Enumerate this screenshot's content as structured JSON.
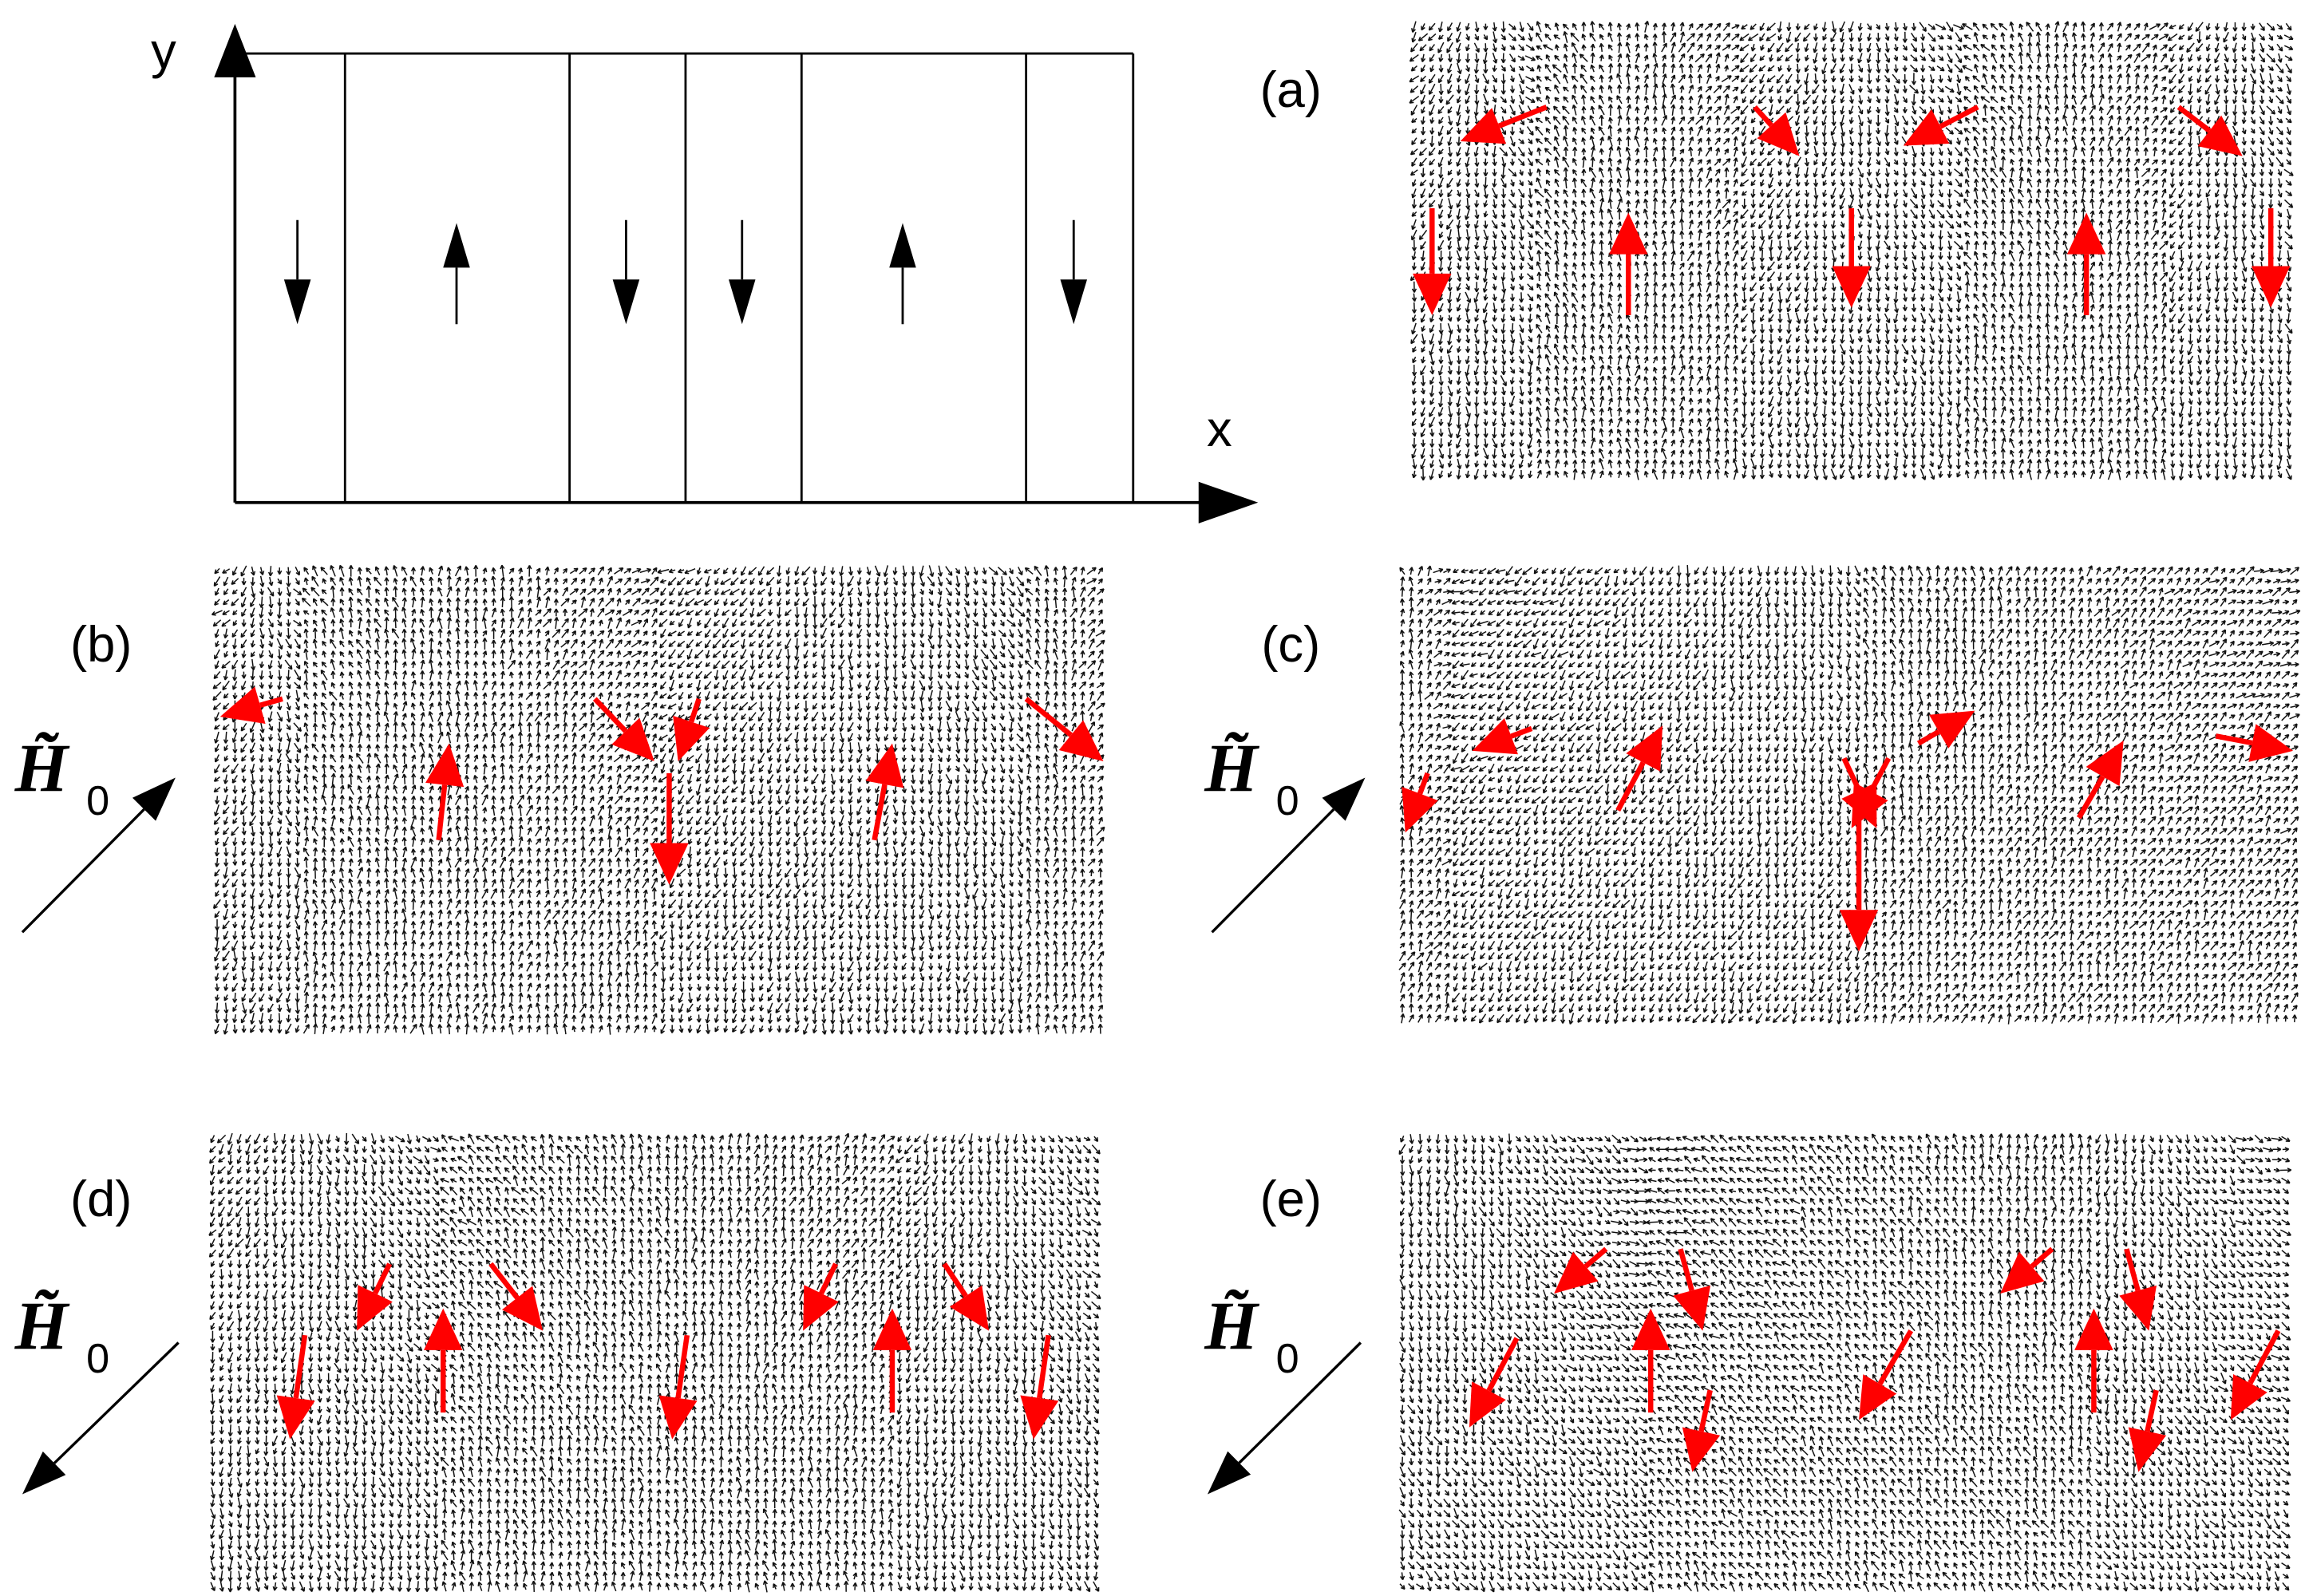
{
  "schematic": {
    "y_axis_label": "y",
    "x_axis_label": "x"
  },
  "panels": [
    {
      "label": "(a)"
    },
    {
      "label": "(b)",
      "field": {
        "symbol": "H̃",
        "subscript": "0"
      }
    },
    {
      "label": "(c)",
      "field": {
        "symbol": "H̃",
        "subscript": "0"
      }
    },
    {
      "label": "(d)",
      "field": {
        "symbol": "H̃",
        "subscript": "0"
      }
    },
    {
      "label": "(e)",
      "field": {
        "symbol": "H̃",
        "subscript": "0"
      }
    }
  ]
}
